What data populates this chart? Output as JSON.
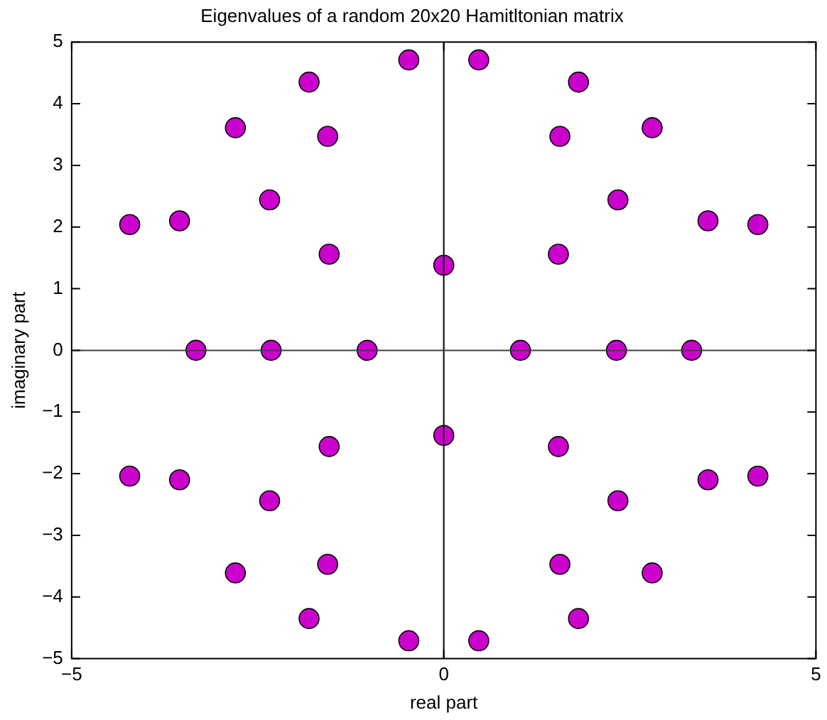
{
  "chart_data": {
    "type": "scatter",
    "title": "Eigenvalues of a random 20x20 Hamitltonian matrix",
    "xlabel": "real part",
    "ylabel": "imaginary part",
    "xlim": [
      -5,
      5
    ],
    "xticks": [
      -5,
      0,
      5
    ],
    "ylim": [
      -5,
      5
    ],
    "yticks": [
      -5,
      -4,
      -3,
      -2,
      -1,
      0,
      1,
      2,
      3,
      4,
      5
    ],
    "grid": false,
    "legend": false,
    "marker": "circle",
    "ref_lines": [
      {
        "axis": "x",
        "value": 0,
        "color": "#000000"
      },
      {
        "axis": "y",
        "value": 0,
        "color": "#404040"
      }
    ],
    "series": [
      {
        "color": "#cc00cc",
        "x": [
          -0.47,
          0.47,
          -1.81,
          1.81,
          -2.8,
          2.8,
          -1.56,
          1.56,
          -2.34,
          2.34,
          -4.22,
          4.22,
          -3.55,
          3.55,
          -1.54,
          1.54,
          0,
          -3.33,
          -2.32,
          -1.03,
          1.03,
          2.32,
          3.33,
          0,
          -1.54,
          1.54,
          -3.55,
          3.55,
          -4.22,
          4.22,
          -2.34,
          2.34,
          -1.56,
          1.56,
          -2.8,
          2.8,
          -1.81,
          1.81,
          -0.47,
          0.47
        ],
        "values": [
          4.71,
          4.71,
          4.35,
          4.35,
          3.61,
          3.61,
          3.47,
          3.47,
          2.44,
          2.44,
          2.04,
          2.04,
          2.1,
          2.1,
          1.56,
          1.56,
          1.38,
          0,
          0,
          0,
          0,
          0,
          0,
          -1.38,
          -1.56,
          -1.56,
          -2.1,
          -2.1,
          -2.04,
          -2.04,
          -2.44,
          -2.44,
          -3.47,
          -3.47,
          -3.61,
          -3.61,
          -4.35,
          -4.35,
          -4.71,
          -4.71
        ]
      }
    ]
  }
}
